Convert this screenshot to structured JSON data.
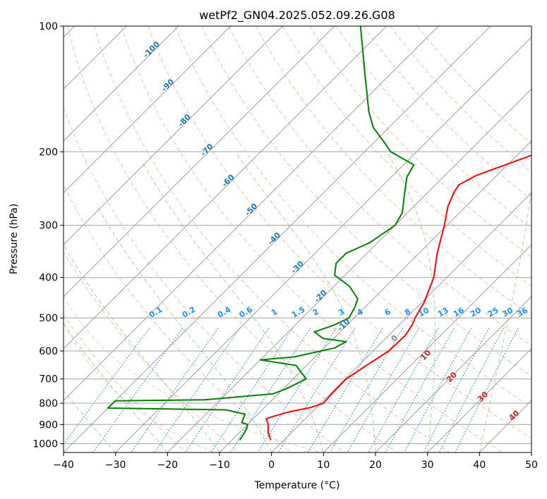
{
  "chart_data": {
    "type": "line",
    "diagram": "skew-T log-P",
    "title": "wetPf2_GN04.2025.052.09.26.G08",
    "xlabel": "Temperature (°C)",
    "ylabel": "Pressure (hPa)",
    "xlim": [
      -40,
      50
    ],
    "ylim": [
      1050,
      100
    ],
    "y_scale": "log",
    "x_ticks": [
      -40,
      -30,
      -20,
      -10,
      0,
      10,
      20,
      30,
      40,
      50
    ],
    "x_tick_labels": [
      "−40",
      "−30",
      "−20",
      "−10",
      "0",
      "10",
      "20",
      "30",
      "40",
      "50"
    ],
    "y_ticks": [
      100,
      200,
      300,
      400,
      500,
      600,
      700,
      800,
      900,
      1000
    ],
    "y_tick_labels": [
      "100",
      "200",
      "300",
      "400",
      "500",
      "600",
      "700",
      "800",
      "900",
      "1000"
    ],
    "grid": true,
    "series": [
      {
        "role": "temperature",
        "color": "#ff0000",
        "points": [
          [
            981,
            -2.5
          ],
          [
            940,
            -4.5
          ],
          [
            900,
            -6.0
          ],
          [
            872,
            -7.5
          ],
          [
            860,
            -6.5
          ],
          [
            840,
            -4.5
          ],
          [
            818,
            -1.0
          ],
          [
            800,
            0.5
          ],
          [
            760,
            0.3
          ],
          [
            700,
            0.2
          ],
          [
            650,
            1.5
          ],
          [
            600,
            3.0
          ],
          [
            550,
            3.2
          ],
          [
            520,
            2.5
          ],
          [
            500,
            1.7
          ],
          [
            460,
            0.5
          ],
          [
            400,
            -2.5
          ],
          [
            350,
            -6.5
          ],
          [
            300,
            -10.5
          ],
          [
            270,
            -13.5
          ],
          [
            250,
            -15.0
          ],
          [
            240,
            -15.5
          ],
          [
            228,
            -14.0
          ],
          [
            217,
            -11.0
          ],
          [
            200,
            -6.0
          ],
          [
            190,
            -3.5
          ],
          [
            170,
            -1.0
          ],
          [
            160,
            0.0
          ],
          [
            140,
            3.5
          ],
          [
            120,
            7.5
          ],
          [
            100,
            13.5
          ]
        ]
      },
      {
        "role": "dewpoint",
        "color": "#008000",
        "points": [
          [
            981,
            -8.5
          ],
          [
            940,
            -9.0
          ],
          [
            915,
            -9.5
          ],
          [
            900,
            -10.0
          ],
          [
            890,
            -11.5
          ],
          [
            850,
            -12.5
          ],
          [
            830,
            -17.0
          ],
          [
            822,
            -40.0
          ],
          [
            790,
            -40.0
          ],
          [
            785,
            -23.0
          ],
          [
            760,
            -11.0
          ],
          [
            740,
            -9.5
          ],
          [
            700,
            -7.5
          ],
          [
            650,
            -12.0
          ],
          [
            630,
            -20.0
          ],
          [
            620,
            -14.0
          ],
          [
            590,
            -8.0
          ],
          [
            570,
            -7.0
          ],
          [
            560,
            -12.0
          ],
          [
            540,
            -15.0
          ],
          [
            520,
            -12.5
          ],
          [
            500,
            -11.0
          ],
          [
            470,
            -12.0
          ],
          [
            450,
            -13.0
          ],
          [
            420,
            -17.0
          ],
          [
            395,
            -22.0
          ],
          [
            370,
            -24.0
          ],
          [
            350,
            -24.0
          ],
          [
            330,
            -21.5
          ],
          [
            300,
            -20.0
          ],
          [
            280,
            -21.0
          ],
          [
            250,
            -24.5
          ],
          [
            230,
            -27.0
          ],
          [
            215,
            -28.0
          ],
          [
            200,
            -35.0
          ],
          [
            190,
            -38.0
          ],
          [
            175,
            -43.0
          ],
          [
            160,
            -47.0
          ],
          [
            130,
            -55.0
          ],
          [
            100,
            -65.0
          ]
        ]
      }
    ],
    "dry_adiabat_thetas_K": [
      -20,
      -10,
      0,
      10,
      20,
      30,
      40,
      50,
      60,
      70,
      80,
      90,
      100,
      110,
      120,
      130,
      140,
      150
    ],
    "moist_adiabat_start_C": [
      -30,
      -20,
      -10,
      0,
      10,
      20,
      30,
      40
    ],
    "isotherm_labels": [
      "-100",
      "-90",
      "-80",
      "-70",
      "-60",
      "-50",
      "-40",
      "-30",
      "-20",
      "-10"
    ],
    "mixing_ratio_labels": [
      "0.1",
      "0.2",
      "0.4",
      "0.6",
      "1",
      "1.5",
      "2",
      "3",
      "4",
      "6",
      "8",
      "10",
      "13",
      "16",
      "20",
      "25",
      "30",
      "36"
    ],
    "theta_e_labels": [
      "0",
      "10",
      "20",
      "30",
      "40"
    ],
    "colors": {
      "temperature": "#ff0000",
      "dewpoint": "#008000",
      "isotherm_grid": "#a0a0a0",
      "isotherm_label": "#1f77b4",
      "mixing_ratio": "#1e90ff",
      "dry_adiabat": "#ffa07a",
      "moist_adiabat": "#90c990",
      "aux_curve": "#d2b48c",
      "theta_e_label": "#cc2222",
      "theta_e_zero": "#808080"
    }
  }
}
